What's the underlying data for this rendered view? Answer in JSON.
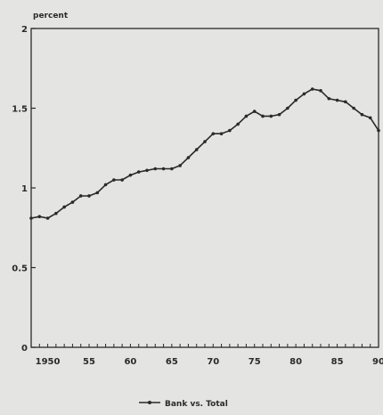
{
  "chart_data": {
    "type": "line",
    "unit_label": "percent",
    "xlim": [
      1948,
      1990
    ],
    "ylim": [
      0,
      2
    ],
    "y_ticks": [
      {
        "value": 0,
        "label": "0"
      },
      {
        "value": 0.5,
        "label": "0.5"
      },
      {
        "value": 1,
        "label": "1"
      },
      {
        "value": 1.5,
        "label": "1.5"
      },
      {
        "value": 2,
        "label": "2"
      }
    ],
    "x_ticks": [
      {
        "value": 1950,
        "label": "1950"
      },
      {
        "value": 1955,
        "label": "55"
      },
      {
        "value": 1960,
        "label": "60"
      },
      {
        "value": 1965,
        "label": "65"
      },
      {
        "value": 1970,
        "label": "70"
      },
      {
        "value": 1975,
        "label": "75"
      },
      {
        "value": 1980,
        "label": "80"
      },
      {
        "value": 1985,
        "label": "85"
      },
      {
        "value": 1990,
        "label": "90"
      }
    ],
    "grid": false,
    "legend_position": "bottom-center",
    "series": [
      {
        "name": "Bank vs. Total",
        "color": "#2a2a2a",
        "x": [
          1948,
          1949,
          1950,
          1951,
          1952,
          1953,
          1954,
          1955,
          1956,
          1957,
          1958,
          1959,
          1960,
          1961,
          1962,
          1963,
          1964,
          1965,
          1966,
          1967,
          1968,
          1969,
          1970,
          1971,
          1972,
          1973,
          1974,
          1975,
          1976,
          1977,
          1978,
          1979,
          1980,
          1981,
          1982,
          1983,
          1984,
          1985,
          1986,
          1987,
          1988,
          1989,
          1990
        ],
        "values": [
          0.81,
          0.82,
          0.81,
          0.84,
          0.88,
          0.91,
          0.95,
          0.95,
          0.97,
          1.02,
          1.05,
          1.05,
          1.08,
          1.1,
          1.11,
          1.12,
          1.12,
          1.12,
          1.14,
          1.19,
          1.24,
          1.29,
          1.34,
          1.34,
          1.36,
          1.4,
          1.45,
          1.48,
          1.45,
          1.45,
          1.46,
          1.5,
          1.55,
          1.59,
          1.62,
          1.61,
          1.56,
          1.55,
          1.54,
          1.5,
          1.46,
          1.44,
          1.36
        ]
      }
    ]
  }
}
